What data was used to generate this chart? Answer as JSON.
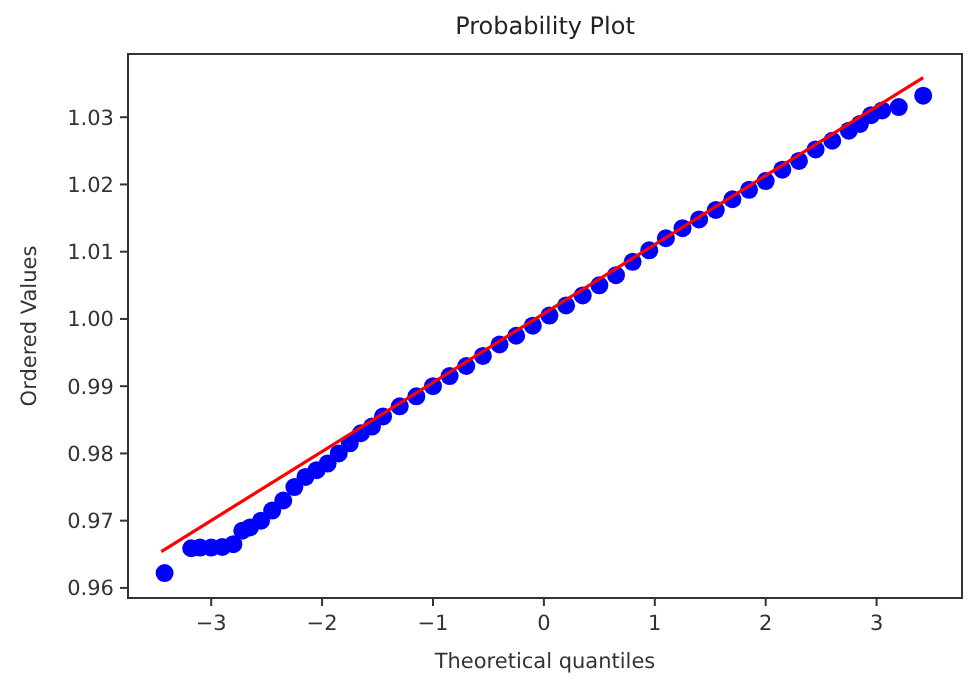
{
  "chart_data": {
    "type": "scatter",
    "title": "Probability Plot",
    "xlabel": "Theoretical quantiles",
    "ylabel": "Ordered Values",
    "xlim": [
      -3.75,
      3.77
    ],
    "ylim": [
      0.9585,
      1.0394
    ],
    "xticks": [
      -3,
      -2,
      -1,
      0,
      1,
      2,
      3
    ],
    "yticks": [
      0.96,
      0.97,
      0.98,
      0.99,
      {
        "value": 1,
        "label": "1.00"
      },
      1.01,
      1.02,
      1.03
    ],
    "grid": false,
    "series": [
      {
        "color": "#0000ff",
        "marker": "circle",
        "x": [
          -3.42,
          -3.18,
          -3.1,
          -3.0,
          -2.9,
          -2.8,
          -2.72,
          -2.65,
          -2.55,
          -2.45,
          -2.35,
          -2.25,
          -2.15,
          -2.05,
          -1.95,
          -1.85,
          -1.75,
          -1.65,
          -1.55,
          -1.45,
          -1.3,
          -1.15,
          -1.0,
          -0.85,
          -0.7,
          -0.55,
          -0.4,
          -0.25,
          -0.1,
          0.05,
          0.2,
          0.35,
          0.5,
          0.65,
          0.8,
          0.95,
          1.1,
          1.25,
          1.4,
          1.55,
          1.7,
          1.85,
          2.0,
          2.15,
          2.3,
          2.45,
          2.6,
          2.75,
          2.85,
          2.95,
          3.05,
          3.2,
          3.42
        ],
        "values": [
          0.9622,
          0.9659,
          0.966,
          0.966,
          0.9661,
          0.9665,
          0.9685,
          0.969,
          0.97,
          0.9715,
          0.973,
          0.975,
          0.9765,
          0.9775,
          0.9785,
          0.98,
          0.9815,
          0.983,
          0.984,
          0.9855,
          0.987,
          0.9885,
          0.99,
          0.9915,
          0.993,
          0.9945,
          0.9962,
          0.9975,
          0.999,
          1.0005,
          1.002,
          1.0035,
          1.005,
          1.0065,
          1.0085,
          1.0102,
          1.012,
          1.0135,
          1.0148,
          1.0162,
          1.0178,
          1.0192,
          1.0205,
          1.0222,
          1.0235,
          1.0252,
          1.0265,
          1.028,
          1.029,
          1.0303,
          1.031,
          1.0315,
          1.0332
        ]
      },
      {
        "type": "line",
        "color": "#ff0000",
        "x": [
          -3.45,
          3.42
        ],
        "values": [
          0.9654,
          1.0359
        ]
      }
    ]
  }
}
